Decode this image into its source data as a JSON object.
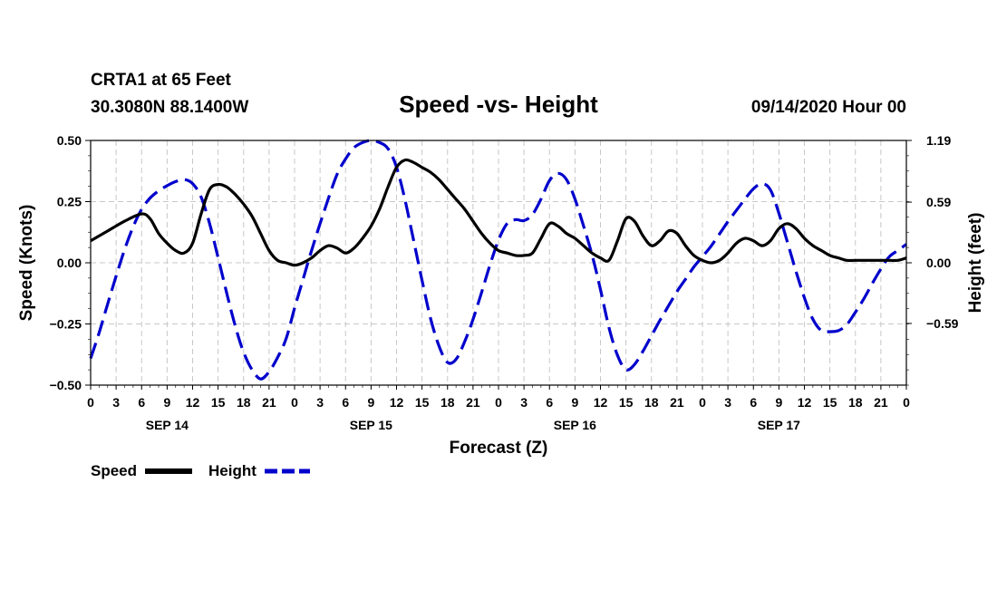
{
  "header": {
    "station": "CRTA1 at 65 Feet",
    "coords": "30.3080N 88.1400W",
    "issued": "09/14/2020 Hour 00"
  },
  "chart_data": {
    "type": "line",
    "title": "Speed -vs- Height",
    "xlabel": "Forecast (Z)",
    "ylabel_left": "Speed (Knots)",
    "ylabel_right": "Height (feet)",
    "x_range_hours": [
      0,
      96
    ],
    "y_left_range": [
      -0.5,
      0.5
    ],
    "y_right_range": [
      -1.19,
      1.19
    ],
    "x_tick_labels": [
      "0",
      "3",
      "6",
      "9",
      "12",
      "15",
      "18",
      "21",
      "0",
      "3",
      "6",
      "9",
      "12",
      "15",
      "18",
      "21",
      "0",
      "3",
      "6",
      "9",
      "12",
      "15",
      "18",
      "21",
      "0",
      "3",
      "6",
      "9",
      "12",
      "15",
      "18",
      "21",
      "0"
    ],
    "date_labels": [
      {
        "label": "SEP 14",
        "hour": 9
      },
      {
        "label": "SEP 15",
        "hour": 33
      },
      {
        "label": "SEP 16",
        "hour": 57
      },
      {
        "label": "SEP 17",
        "hour": 81
      }
    ],
    "y_left_ticks": [
      {
        "value": 0.5,
        "label": "0.50"
      },
      {
        "value": 0.25,
        "label": "0.25"
      },
      {
        "value": 0.0,
        "label": "0.00"
      },
      {
        "value": -0.25,
        "label": "−0.25"
      },
      {
        "value": -0.5,
        "label": "−0.50"
      }
    ],
    "y_right_ticks": [
      {
        "value": 1.19,
        "label": "1.19"
      },
      {
        "value": 0.59,
        "label": "0.59"
      },
      {
        "value": 0.0,
        "label": "0.00"
      },
      {
        "value": -0.59,
        "label": "−0.59"
      }
    ],
    "legend": [
      {
        "name": "Speed",
        "color": "#000000",
        "dash": "solid"
      },
      {
        "name": "Height",
        "color": "#0000cc",
        "dash": "dashed"
      }
    ],
    "series": [
      {
        "name": "Speed",
        "axis": "left",
        "color": "#000000",
        "points": [
          [
            0,
            0.09
          ],
          [
            2,
            0.13
          ],
          [
            4,
            0.17
          ],
          [
            6,
            0.2
          ],
          [
            7,
            0.18
          ],
          [
            8,
            0.12
          ],
          [
            9,
            0.08
          ],
          [
            10,
            0.05
          ],
          [
            11,
            0.04
          ],
          [
            12,
            0.08
          ],
          [
            13,
            0.2
          ],
          [
            14,
            0.3
          ],
          [
            15,
            0.32
          ],
          [
            16,
            0.31
          ],
          [
            17,
            0.28
          ],
          [
            18,
            0.24
          ],
          [
            19,
            0.19
          ],
          [
            20,
            0.12
          ],
          [
            21,
            0.05
          ],
          [
            22,
            0.01
          ],
          [
            23,
            0.0
          ],
          [
            24,
            -0.01
          ],
          [
            25,
            0.0
          ],
          [
            26,
            0.02
          ],
          [
            27,
            0.05
          ],
          [
            28,
            0.07
          ],
          [
            29,
            0.06
          ],
          [
            30,
            0.04
          ],
          [
            31,
            0.06
          ],
          [
            32,
            0.1
          ],
          [
            33,
            0.15
          ],
          [
            34,
            0.22
          ],
          [
            35,
            0.31
          ],
          [
            36,
            0.39
          ],
          [
            37,
            0.42
          ],
          [
            38,
            0.41
          ],
          [
            39,
            0.39
          ],
          [
            40,
            0.37
          ],
          [
            41,
            0.34
          ],
          [
            42,
            0.3
          ],
          [
            43,
            0.26
          ],
          [
            44,
            0.22
          ],
          [
            45,
            0.17
          ],
          [
            46,
            0.12
          ],
          [
            47,
            0.08
          ],
          [
            48,
            0.05
          ],
          [
            49,
            0.04
          ],
          [
            50,
            0.03
          ],
          [
            51,
            0.03
          ],
          [
            52,
            0.04
          ],
          [
            53,
            0.1
          ],
          [
            54,
            0.16
          ],
          [
            55,
            0.15
          ],
          [
            56,
            0.12
          ],
          [
            57,
            0.1
          ],
          [
            58,
            0.07
          ],
          [
            59,
            0.04
          ],
          [
            60,
            0.02
          ],
          [
            61,
            0.01
          ],
          [
            62,
            0.09
          ],
          [
            63,
            0.18
          ],
          [
            64,
            0.17
          ],
          [
            65,
            0.11
          ],
          [
            66,
            0.07
          ],
          [
            67,
            0.09
          ],
          [
            68,
            0.13
          ],
          [
            69,
            0.12
          ],
          [
            70,
            0.07
          ],
          [
            71,
            0.03
          ],
          [
            72,
            0.01
          ],
          [
            73,
            0.0
          ],
          [
            74,
            0.01
          ],
          [
            75,
            0.04
          ],
          [
            76,
            0.08
          ],
          [
            77,
            0.1
          ],
          [
            78,
            0.09
          ],
          [
            79,
            0.07
          ],
          [
            80,
            0.09
          ],
          [
            81,
            0.14
          ],
          [
            82,
            0.16
          ],
          [
            83,
            0.14
          ],
          [
            84,
            0.1
          ],
          [
            85,
            0.07
          ],
          [
            86,
            0.05
          ],
          [
            87,
            0.03
          ],
          [
            88,
            0.02
          ],
          [
            89,
            0.01
          ],
          [
            90,
            0.01
          ],
          [
            91,
            0.01
          ],
          [
            92,
            0.01
          ],
          [
            93,
            0.01
          ],
          [
            94,
            0.01
          ],
          [
            95,
            0.01
          ],
          [
            96,
            0.02
          ]
        ]
      },
      {
        "name": "Height",
        "axis": "right",
        "color": "#0000cc",
        "points": [
          [
            0,
            -0.93
          ],
          [
            1,
            -0.68
          ],
          [
            2,
            -0.4
          ],
          [
            3,
            -0.13
          ],
          [
            4,
            0.13
          ],
          [
            5,
            0.35
          ],
          [
            6,
            0.52
          ],
          [
            7,
            0.63
          ],
          [
            8,
            0.7
          ],
          [
            9,
            0.75
          ],
          [
            10,
            0.79
          ],
          [
            11,
            0.81
          ],
          [
            12,
            0.77
          ],
          [
            13,
            0.64
          ],
          [
            14,
            0.38
          ],
          [
            15,
            0.05
          ],
          [
            16,
            -0.29
          ],
          [
            17,
            -0.61
          ],
          [
            18,
            -0.87
          ],
          [
            19,
            -1.04
          ],
          [
            20,
            -1.13
          ],
          [
            21,
            -1.06
          ],
          [
            22,
            -0.92
          ],
          [
            23,
            -0.74
          ],
          [
            24,
            -0.44
          ],
          [
            25,
            -0.16
          ],
          [
            26,
            0.12
          ],
          [
            27,
            0.38
          ],
          [
            28,
            0.63
          ],
          [
            29,
            0.86
          ],
          [
            30,
            1.01
          ],
          [
            31,
            1.12
          ],
          [
            32,
            1.17
          ],
          [
            33,
            1.19
          ],
          [
            34,
            1.17
          ],
          [
            35,
            1.11
          ],
          [
            36,
            0.93
          ],
          [
            37,
            0.61
          ],
          [
            38,
            0.22
          ],
          [
            39,
            -0.17
          ],
          [
            40,
            -0.54
          ],
          [
            41,
            -0.81
          ],
          [
            42,
            -0.97
          ],
          [
            43,
            -0.94
          ],
          [
            44,
            -0.77
          ],
          [
            45,
            -0.55
          ],
          [
            46,
            -0.29
          ],
          [
            47,
            -0.02
          ],
          [
            48,
            0.22
          ],
          [
            49,
            0.38
          ],
          [
            50,
            0.42
          ],
          [
            51,
            0.41
          ],
          [
            52,
            0.47
          ],
          [
            53,
            0.62
          ],
          [
            54,
            0.8
          ],
          [
            55,
            0.87
          ],
          [
            56,
            0.81
          ],
          [
            57,
            0.62
          ],
          [
            58,
            0.36
          ],
          [
            59,
            0.08
          ],
          [
            60,
            -0.26
          ],
          [
            61,
            -0.63
          ],
          [
            62,
            -0.9
          ],
          [
            63,
            -1.04
          ],
          [
            64,
            -0.99
          ],
          [
            65,
            -0.86
          ],
          [
            66,
            -0.71
          ],
          [
            67,
            -0.56
          ],
          [
            68,
            -0.42
          ],
          [
            69,
            -0.28
          ],
          [
            70,
            -0.16
          ],
          [
            71,
            -0.04
          ],
          [
            72,
            0.06
          ],
          [
            73,
            0.16
          ],
          [
            74,
            0.28
          ],
          [
            75,
            0.4
          ],
          [
            76,
            0.51
          ],
          [
            77,
            0.62
          ],
          [
            78,
            0.72
          ],
          [
            79,
            0.77
          ],
          [
            80,
            0.71
          ],
          [
            81,
            0.48
          ],
          [
            82,
            0.2
          ],
          [
            83,
            -0.08
          ],
          [
            84,
            -0.34
          ],
          [
            85,
            -0.55
          ],
          [
            86,
            -0.66
          ],
          [
            87,
            -0.67
          ],
          [
            88,
            -0.66
          ],
          [
            89,
            -0.6
          ],
          [
            90,
            -0.48
          ],
          [
            91,
            -0.35
          ],
          [
            92,
            -0.2
          ],
          [
            93,
            -0.06
          ],
          [
            94,
            0.06
          ],
          [
            95,
            0.12
          ],
          [
            96,
            0.18
          ]
        ]
      }
    ]
  }
}
